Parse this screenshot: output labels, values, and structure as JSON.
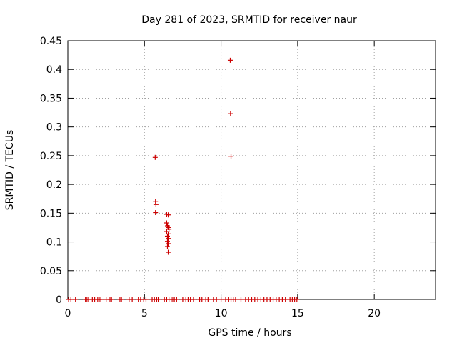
{
  "chart_data": {
    "type": "scatter",
    "title": "Day 281 of 2023, SRMTID for receiver naur",
    "xlabel": "GPS time / hours",
    "ylabel": "SRMTID / TECUs",
    "xlim": [
      0,
      24
    ],
    "ylim": [
      0,
      0.45
    ],
    "grid": true,
    "marker": "+",
    "marker_color": "#cc0000",
    "xticks": [
      {
        "value": 0,
        "label": "0"
      },
      {
        "value": 5,
        "label": "5"
      },
      {
        "value": 10,
        "label": "10"
      },
      {
        "value": 15,
        "label": "15"
      },
      {
        "value": 20,
        "label": "20"
      }
    ],
    "yticks": [
      {
        "value": 0,
        "label": "0"
      },
      {
        "value": 0.05,
        "label": "0.05"
      },
      {
        "value": 0.1,
        "label": "0.1"
      },
      {
        "value": 0.15,
        "label": "0.15"
      },
      {
        "value": 0.2,
        "label": "0.2"
      },
      {
        "value": 0.25,
        "label": "0.25"
      },
      {
        "value": 0.3,
        "label": "0.3"
      },
      {
        "value": 0.35,
        "label": "0.35"
      },
      {
        "value": 0.4,
        "label": "0.4"
      },
      {
        "value": 0.45,
        "label": "0.45"
      }
    ],
    "points": [
      {
        "x": 5.7,
        "y": 0.247
      },
      {
        "x": 5.72,
        "y": 0.17
      },
      {
        "x": 5.75,
        "y": 0.165
      },
      {
        "x": 5.72,
        "y": 0.151
      },
      {
        "x": 6.45,
        "y": 0.148
      },
      {
        "x": 6.55,
        "y": 0.147
      },
      {
        "x": 6.45,
        "y": 0.133
      },
      {
        "x": 6.5,
        "y": 0.128
      },
      {
        "x": 6.55,
        "y": 0.125
      },
      {
        "x": 6.6,
        "y": 0.122
      },
      {
        "x": 6.45,
        "y": 0.118
      },
      {
        "x": 6.55,
        "y": 0.114
      },
      {
        "x": 6.5,
        "y": 0.11
      },
      {
        "x": 6.55,
        "y": 0.106
      },
      {
        "x": 6.5,
        "y": 0.101
      },
      {
        "x": 6.55,
        "y": 0.097
      },
      {
        "x": 6.5,
        "y": 0.092
      },
      {
        "x": 6.55,
        "y": 0.082
      },
      {
        "x": 10.6,
        "y": 0.416
      },
      {
        "x": 10.62,
        "y": 0.323
      },
      {
        "x": 10.65,
        "y": 0.249
      },
      {
        "x": 0.05,
        "y": 0
      },
      {
        "x": 0.2,
        "y": 0
      },
      {
        "x": 0.5,
        "y": 0
      },
      {
        "x": 1.15,
        "y": 0
      },
      {
        "x": 1.25,
        "y": 0
      },
      {
        "x": 1.35,
        "y": 0
      },
      {
        "x": 1.6,
        "y": 0
      },
      {
        "x": 1.75,
        "y": 0
      },
      {
        "x": 1.95,
        "y": 0
      },
      {
        "x": 2.05,
        "y": 0
      },
      {
        "x": 2.15,
        "y": 0
      },
      {
        "x": 2.5,
        "y": 0
      },
      {
        "x": 2.75,
        "y": 0
      },
      {
        "x": 2.85,
        "y": 0
      },
      {
        "x": 3.4,
        "y": 0
      },
      {
        "x": 3.5,
        "y": 0
      },
      {
        "x": 4.0,
        "y": 0
      },
      {
        "x": 4.2,
        "y": 0
      },
      {
        "x": 4.6,
        "y": 0
      },
      {
        "x": 4.75,
        "y": 0
      },
      {
        "x": 4.95,
        "y": 0
      },
      {
        "x": 5.1,
        "y": 0
      },
      {
        "x": 5.5,
        "y": 0
      },
      {
        "x": 5.65,
        "y": 0
      },
      {
        "x": 5.8,
        "y": 0
      },
      {
        "x": 5.9,
        "y": 0
      },
      {
        "x": 6.3,
        "y": 0
      },
      {
        "x": 6.45,
        "y": 0
      },
      {
        "x": 6.6,
        "y": 0
      },
      {
        "x": 6.75,
        "y": 0
      },
      {
        "x": 6.85,
        "y": 0
      },
      {
        "x": 6.95,
        "y": 0
      },
      {
        "x": 7.1,
        "y": 0
      },
      {
        "x": 7.5,
        "y": 0
      },
      {
        "x": 7.7,
        "y": 0
      },
      {
        "x": 7.85,
        "y": 0
      },
      {
        "x": 8.0,
        "y": 0
      },
      {
        "x": 8.2,
        "y": 0
      },
      {
        "x": 8.6,
        "y": 0
      },
      {
        "x": 8.75,
        "y": 0
      },
      {
        "x": 9.0,
        "y": 0
      },
      {
        "x": 9.15,
        "y": 0
      },
      {
        "x": 9.5,
        "y": 0
      },
      {
        "x": 9.7,
        "y": 0
      },
      {
        "x": 10.0,
        "y": 0
      },
      {
        "x": 10.3,
        "y": 0
      },
      {
        "x": 10.5,
        "y": 0
      },
      {
        "x": 10.65,
        "y": 0
      },
      {
        "x": 10.8,
        "y": 0
      },
      {
        "x": 10.95,
        "y": 0
      },
      {
        "x": 11.3,
        "y": 0
      },
      {
        "x": 11.6,
        "y": 0
      },
      {
        "x": 11.8,
        "y": 0
      },
      {
        "x": 12.0,
        "y": 0
      },
      {
        "x": 12.2,
        "y": 0
      },
      {
        "x": 12.4,
        "y": 0
      },
      {
        "x": 12.6,
        "y": 0
      },
      {
        "x": 12.8,
        "y": 0
      },
      {
        "x": 13.0,
        "y": 0
      },
      {
        "x": 13.2,
        "y": 0
      },
      {
        "x": 13.4,
        "y": 0
      },
      {
        "x": 13.6,
        "y": 0
      },
      {
        "x": 13.8,
        "y": 0
      },
      {
        "x": 14.0,
        "y": 0
      },
      {
        "x": 14.2,
        "y": 0
      },
      {
        "x": 14.5,
        "y": 0
      },
      {
        "x": 14.65,
        "y": 0
      },
      {
        "x": 14.8,
        "y": 0
      },
      {
        "x": 14.95,
        "y": 0
      }
    ]
  }
}
